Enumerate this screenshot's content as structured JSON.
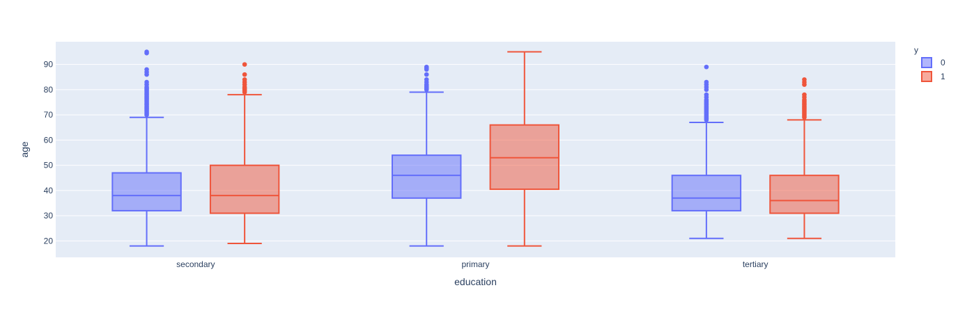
{
  "chart_data": {
    "type": "box",
    "xlabel": "education",
    "ylabel": "age",
    "categories": [
      "secondary",
      "primary",
      "tertiary"
    ],
    "yticks": [
      20,
      30,
      40,
      50,
      60,
      70,
      80,
      90
    ],
    "ylim": [
      13.5,
      99
    ],
    "grid": true,
    "legend": {
      "title": "y",
      "position": "top-right"
    },
    "series": [
      {
        "name": "0",
        "color": "#636EFA",
        "fill": "rgba(99,110,250,0.5)",
        "boxes": [
          {
            "category": "secondary",
            "min": 18,
            "q1": 32,
            "median": 38,
            "q3": 47,
            "max": 69,
            "outliers": [
              70,
              70.5,
              71,
              71.5,
              72,
              72.5,
              73,
              73.5,
              74,
              74.5,
              75,
              75.5,
              76,
              76.5,
              77,
              77.5,
              78,
              78.5,
              79,
              79.5,
              80,
              80.5,
              81,
              82,
              83,
              86,
              87,
              88,
              94.5,
              95
            ]
          },
          {
            "category": "primary",
            "min": 18,
            "q1": 37,
            "median": 46,
            "q3": 54,
            "max": 79,
            "outliers": [
              80,
              80.5,
              81,
              81.5,
              82,
              83,
              84,
              86,
              88,
              88.5,
              89
            ]
          },
          {
            "category": "tertiary",
            "min": 21,
            "q1": 32,
            "median": 37,
            "q3": 46,
            "max": 67,
            "outliers": [
              68,
              68.5,
              69,
              69.5,
              70,
              70.5,
              71,
              71.5,
              72,
              72.5,
              73,
              73.5,
              74,
              74.5,
              75,
              75.5,
              76,
              77,
              78,
              80,
              81,
              82,
              83,
              89
            ]
          }
        ]
      },
      {
        "name": "1",
        "color": "#EF553B",
        "fill": "rgba(239,85,59,0.5)",
        "boxes": [
          {
            "category": "secondary",
            "min": 19,
            "q1": 31,
            "median": 38,
            "q3": 50,
            "max": 78,
            "outliers": [
              79,
              79.5,
              80,
              80.5,
              81,
              82,
              83,
              84,
              86,
              90
            ]
          },
          {
            "category": "primary",
            "min": 18,
            "q1": 40.5,
            "median": 53,
            "q3": 66,
            "max": 95,
            "outliers": []
          },
          {
            "category": "tertiary",
            "min": 21,
            "q1": 31,
            "median": 36,
            "q3": 46,
            "max": 68,
            "outliers": [
              69,
              69.5,
              70,
              70.5,
              71,
              71.5,
              72,
              72.5,
              73,
              73.5,
              74,
              74.5,
              75,
              75.5,
              76,
              77,
              78,
              82,
              83,
              84
            ]
          }
        ]
      }
    ]
  }
}
